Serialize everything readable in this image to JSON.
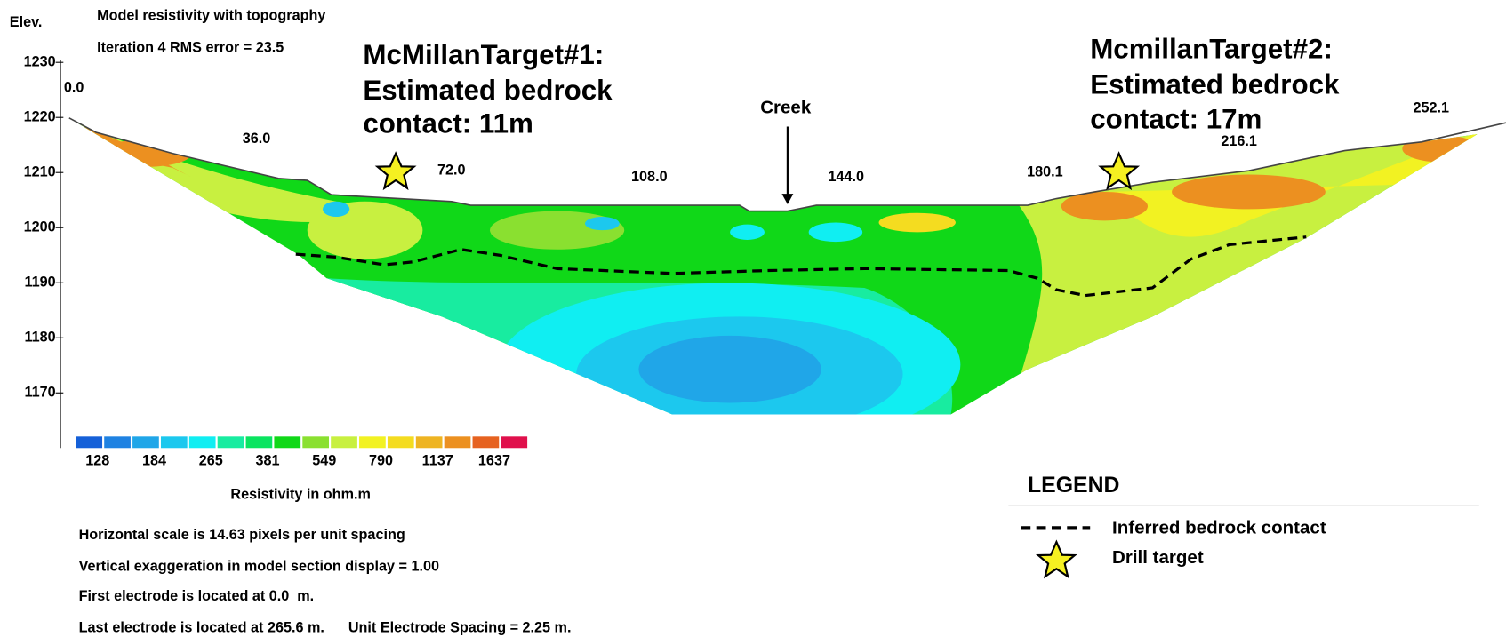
{
  "chart_data": {
    "type": "section",
    "title": "Model resistivity with topography",
    "subtitle": "Iteration 4 RMS error = 23.5",
    "y_label": "Elev.",
    "ylim": [
      1160,
      1230
    ],
    "yticks": [
      1230,
      1220,
      1210,
      1200,
      1190,
      1180,
      1170
    ],
    "x_labels": [
      "0.0",
      "36.0",
      "72.0",
      "108.0",
      "144.0",
      "180.1",
      "216.1",
      "252.1"
    ],
    "annotations": [
      {
        "lines": [
          "McMillanTarget#1:",
          "Estimated bedrock",
          "contact: 11m"
        ]
      },
      {
        "lines": [
          "McmillanTarget#2:",
          "Estimated bedrock",
          "contact: 17m"
        ]
      },
      {
        "lines": [
          "Creek"
        ]
      }
    ],
    "color_scale": {
      "title": "Resistivity in ohm.m",
      "colors": [
        "#1560d8",
        "#1f82e2",
        "#20a6e8",
        "#1cc8ee",
        "#10eef2",
        "#18eca0",
        "#0ae460",
        "#10d818",
        "#8ae030",
        "#c8f040",
        "#f2f222",
        "#f4dc20",
        "#eeb422",
        "#ec9020",
        "#e66220",
        "#e0104c"
      ],
      "labels": [
        "128",
        "184",
        "265",
        "381",
        "549",
        "790",
        "1137",
        "1637"
      ]
    },
    "legend": {
      "title": "LEGEND",
      "items": [
        "Inferred bedrock contact",
        "Drill target"
      ]
    },
    "notes": [
      "Horizontal scale is 14.63 pixels per unit spacing",
      "Vertical exaggeration in model section display = 1.00",
      "First electrode is located at 0.0  m.",
      "Last electrode is located at 265.6 m.      Unit Electrode Spacing = 2.25 m."
    ]
  }
}
